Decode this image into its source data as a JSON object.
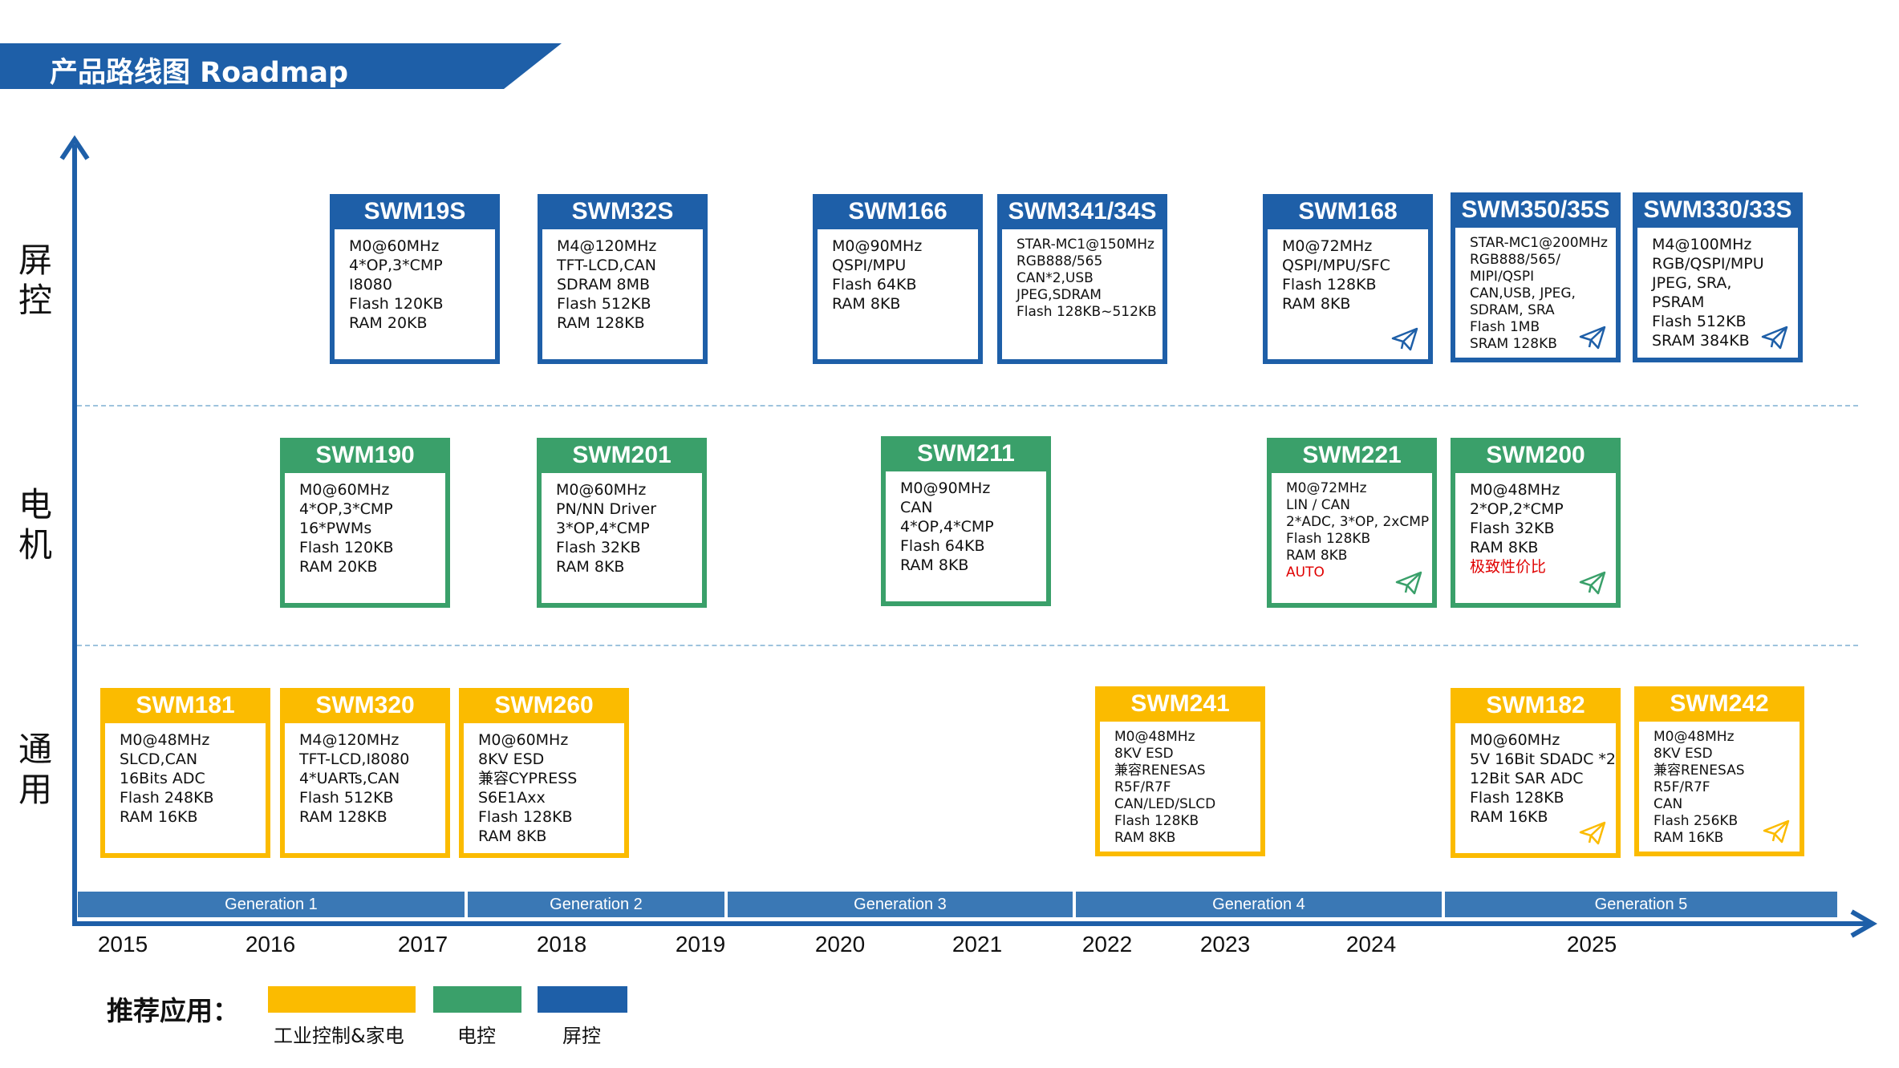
{
  "header": {
    "title": "产品路线图 Roadmap"
  },
  "colors": {
    "display": "#1e5fa8",
    "motor": "#3aa06a",
    "general": "#fbbb00",
    "generation": "#3a78b5"
  },
  "categories": {
    "display": "屏控",
    "motor": "电机",
    "general": "通用"
  },
  "cards": {
    "c1": {
      "title": "SWM19S",
      "lines": [
        "M0@60MHz",
        "4*OP,3*CMP",
        "I8080",
        "Flash 120KB",
        "RAM 20KB"
      ]
    },
    "c2": {
      "title": "SWM32S",
      "lines": [
        "M4@120MHz",
        "TFT-LCD,CAN",
        "SDRAM 8MB",
        "Flash 512KB",
        "RAM 128KB"
      ]
    },
    "c3": {
      "title": "SWM166",
      "lines": [
        "M0@90MHz",
        "QSPI/MPU",
        "Flash 64KB",
        "RAM 8KB"
      ]
    },
    "c4": {
      "title": "SWM341/34S",
      "lines": [
        "STAR-MC1@150MHz",
        "RGB888/565",
        "CAN*2,USB",
        "JPEG,SDRAM",
        "Flash 128KB~512KB"
      ]
    },
    "c5": {
      "title": "SWM168",
      "lines": [
        "M0@72MHz",
        "QSPI/MPU/SFC",
        "Flash 128KB",
        "RAM 8KB"
      ]
    },
    "c6": {
      "title": "SWM350/35S",
      "lines": [
        "STAR-MC1@200MHz",
        "RGB888/565/",
        "MIPI/QSPI",
        "CAN,USB, JPEG,",
        "SDRAM, SRA",
        "Flash 1MB",
        "SRAM 128KB"
      ]
    },
    "c7": {
      "title": "SWM330/33S",
      "lines": [
        "M4@100MHz",
        "RGB/QSPI/MPU",
        "JPEG, SRA,",
        "PSRAM",
        "Flash 512KB",
        "SRAM 384KB"
      ]
    },
    "c8": {
      "title": "SWM190",
      "lines": [
        "M0@60MHz",
        "4*OP,3*CMP",
        "16*PWMs",
        "Flash 120KB",
        "RAM 20KB"
      ]
    },
    "c9": {
      "title": "SWM201",
      "lines": [
        "M0@60MHz",
        "PN/NN Driver",
        "3*OP,4*CMP",
        "Flash 32KB",
        "RAM 8KB"
      ]
    },
    "c10": {
      "title": "SWM211",
      "lines": [
        "M0@90MHz",
        "CAN",
        "4*OP,4*CMP",
        "Flash 64KB",
        "RAM 8KB"
      ]
    },
    "c11": {
      "title": "SWM221",
      "lines": [
        "M0@72MHz",
        "LIN / CAN",
        "2*ADC, 3*OP, 2xCMP",
        "Flash 128KB",
        "RAM 8KB"
      ],
      "note": "AUTO"
    },
    "c12": {
      "title": "SWM200",
      "lines": [
        "M0@48MHz",
        "2*OP,2*CMP",
        "Flash 32KB",
        "RAM 8KB"
      ],
      "note": "极致性价比"
    },
    "c13": {
      "title": "SWM181",
      "lines": [
        "M0@48MHz",
        "SLCD,CAN",
        "16Bits ADC",
        "Flash 248KB",
        "RAM 16KB"
      ]
    },
    "c14": {
      "title": "SWM320",
      "lines": [
        "M4@120MHz",
        "TFT-LCD,I8080",
        "4*UARTs,CAN",
        "Flash 512KB",
        "RAM 128KB"
      ]
    },
    "c15": {
      "title": "SWM260",
      "lines": [
        "M0@60MHz",
        "8KV ESD",
        "兼容CYPRESS",
        "S6E1Axx",
        "Flash 128KB",
        "RAM 8KB"
      ]
    },
    "c16": {
      "title": "SWM241",
      "lines": [
        "M0@48MHz",
        "8KV ESD",
        "兼容RENESAS",
        "R5F/R7F",
        "CAN/LED/SLCD",
        "Flash 128KB",
        "RAM 8KB"
      ]
    },
    "c17": {
      "title": "SWM182",
      "lines": [
        "M0@60MHz",
        "5V 16Bit SDADC *2",
        "12Bit SAR ADC",
        "Flash 128KB",
        "RAM 16KB"
      ]
    },
    "c18": {
      "title": "SWM242",
      "lines": [
        "M0@48MHz",
        "8KV ESD",
        "兼容RENESAS",
        "R5F/R7F",
        "CAN",
        "Flash 256KB",
        "RAM 16KB"
      ]
    }
  },
  "generations": [
    "Generation 1",
    "Generation 2",
    "Generation 3",
    "Generation 4",
    "Generation 5"
  ],
  "years": [
    "2015",
    "2016",
    "2017",
    "2018",
    "2019",
    "2020",
    "2021",
    "2022",
    "2023",
    "2024",
    "2025"
  ],
  "legend": {
    "title": "推荐应用：",
    "items": [
      {
        "label": "工业控制&家电",
        "color": "#fbbb00"
      },
      {
        "label": "电控",
        "color": "#3aa06a"
      },
      {
        "label": "屏控",
        "color": "#1e5fa8"
      }
    ]
  }
}
